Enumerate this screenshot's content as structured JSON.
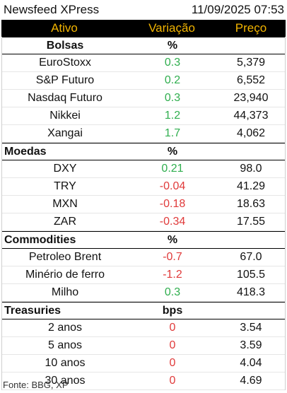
{
  "header": {
    "title": "Newsfeed XPress",
    "datetime": "11/09/2025 07:53"
  },
  "columns": {
    "asset": "Ativo",
    "change": "Variação",
    "price": "Preço"
  },
  "sections": {
    "bolsas": {
      "name": "Bolsas",
      "unit": "%",
      "rows": [
        {
          "name": "EuroStoxx",
          "change": "0.3",
          "price": "5,379"
        },
        {
          "name": "S&P Futuro",
          "change": "0.2",
          "price": "6,552"
        },
        {
          "name": "Nasdaq Futuro",
          "change": "0.3",
          "price": "23,940"
        },
        {
          "name": "Nikkei",
          "change": "1.2",
          "price": "44,373"
        },
        {
          "name": "Xangai",
          "change": "1.7",
          "price": "4,062"
        }
      ]
    },
    "moedas": {
      "name": "Moedas",
      "unit": "%",
      "rows": [
        {
          "name": "DXY",
          "change": "0.21",
          "price": "98.0"
        },
        {
          "name": "TRY",
          "change": "-0.04",
          "price": "41.29"
        },
        {
          "name": "MXN",
          "change": "-0.18",
          "price": "18.63"
        },
        {
          "name": "ZAR",
          "change": "-0.34",
          "price": "17.55"
        }
      ]
    },
    "commodities": {
      "name": "Commodities",
      "unit": "%",
      "rows": [
        {
          "name": "Petroleo Brent",
          "change": "-0.7",
          "price": "67.0"
        },
        {
          "name": "Minério de ferro",
          "change": "-1.2",
          "price": "105.5"
        },
        {
          "name": "Milho",
          "change": "0.3",
          "price": "418.3"
        }
      ]
    },
    "treasuries": {
      "name": "Treasuries",
      "unit": "bps",
      "rows": [
        {
          "name": "2 anos",
          "change": "0",
          "price": "3.54"
        },
        {
          "name": "5 anos",
          "change": "0",
          "price": "3.59"
        },
        {
          "name": "10 anos",
          "change": "0",
          "price": "4.04"
        },
        {
          "name": "30 anos",
          "change": "0",
          "price": "4.69"
        }
      ]
    }
  },
  "footer": {
    "source": "Fonte: BBG, XP"
  },
  "colors": {
    "positive": "#2fae4e",
    "negative": "#e03a3a",
    "header_text": "#f2b400",
    "header_bg": "#000000"
  }
}
